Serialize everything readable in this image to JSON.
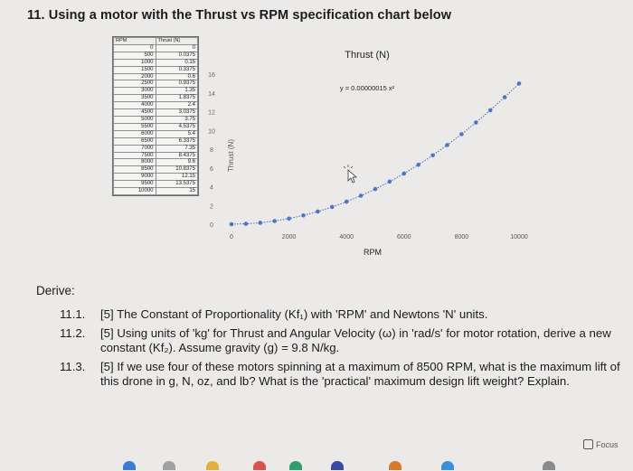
{
  "header": {
    "title": "11. Using a motor with the Thrust vs RPM specification chart below"
  },
  "table": {
    "headers": [
      "RPM",
      "Thrust (N)"
    ],
    "rows": [
      [
        "0",
        "0"
      ],
      [
        "500",
        "0.0375"
      ],
      [
        "1000",
        "0.15"
      ],
      [
        "1500",
        "0.3375"
      ],
      [
        "2000",
        "0.6"
      ],
      [
        "2500",
        "0.9375"
      ],
      [
        "3000",
        "1.35"
      ],
      [
        "3500",
        "1.8375"
      ],
      [
        "4000",
        "2.4"
      ],
      [
        "4500",
        "3.0375"
      ],
      [
        "5000",
        "3.75"
      ],
      [
        "5500",
        "4.5375"
      ],
      [
        "6000",
        "5.4"
      ],
      [
        "6500",
        "6.3375"
      ],
      [
        "7000",
        "7.35"
      ],
      [
        "7500",
        "8.4375"
      ],
      [
        "8000",
        "9.6"
      ],
      [
        "8500",
        "10.8375"
      ],
      [
        "9000",
        "12.15"
      ],
      [
        "9500",
        "13.5375"
      ],
      [
        "10000",
        "15"
      ]
    ]
  },
  "chart_data": {
    "type": "scatter",
    "title": "Thrust (N)",
    "xlabel": "RPM",
    "ylabel": "Thrust (N)",
    "equation": "y = 0.00000015  x²",
    "xlim": [
      0,
      10000
    ],
    "ylim": [
      0,
      16
    ],
    "xticks": [
      "0",
      "2000",
      "4000",
      "6000",
      "8000",
      "10000"
    ],
    "yticks": [
      "0",
      "2",
      "4",
      "6",
      "8",
      "10",
      "12",
      "14",
      "16"
    ],
    "grid": false,
    "marker_color": "#4a78c2",
    "x": [
      0,
      500,
      1000,
      1500,
      2000,
      2500,
      3000,
      3500,
      4000,
      4500,
      5000,
      5500,
      6000,
      6500,
      7000,
      7500,
      8000,
      8500,
      9000,
      9500,
      10000
    ],
    "y": [
      0,
      0.0375,
      0.15,
      0.3375,
      0.6,
      0.9375,
      1.35,
      1.8375,
      2.4,
      3.0375,
      3.75,
      4.5375,
      5.4,
      6.3375,
      7.35,
      8.4375,
      9.6,
      10.8375,
      12.15,
      13.5375,
      15
    ]
  },
  "derive": {
    "label": "Derive:",
    "questions": [
      {
        "num": "11.1.",
        "text": "[5] The Constant of Proportionality (Kf₁) with 'RPM' and Newtons 'N' units."
      },
      {
        "num": "11.2.",
        "text": "[5] Using units of 'kg' for Thrust and Angular Velocity (ω) in 'rad/s' for motor rotation, derive a new constant (Kf₂). Assume gravity (g) = 9.8 N/kg."
      },
      {
        "num": "11.3.",
        "text": "[5] If we use four of these motors spinning at a maximum of 8500 RPM, what is the maximum lift of this drone in g, N, oz, and lb? What is the 'practical' maximum design lift weight? Explain."
      }
    ]
  },
  "focus": {
    "label": "Focus"
  }
}
